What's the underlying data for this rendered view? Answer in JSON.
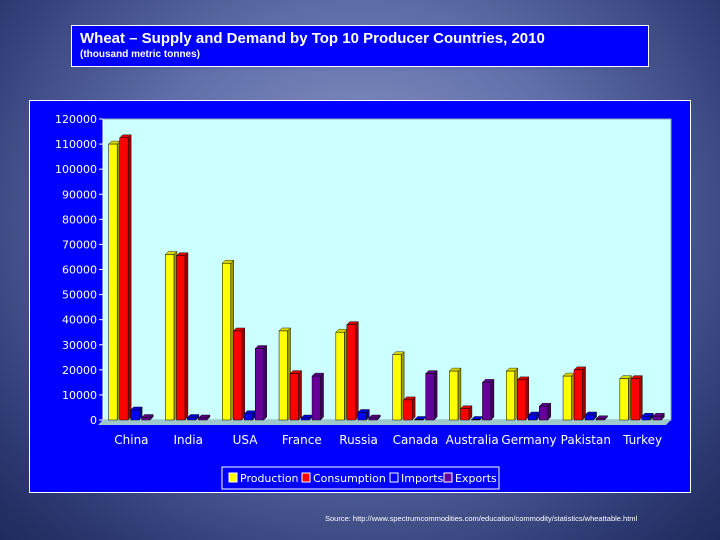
{
  "header": {
    "title": "Wheat – Supply and Demand by Top 10 Producer Countries, 2010",
    "subtitle": "(thousand metric tonnes)"
  },
  "footer": {
    "source": "Source: http://www.spectrumcommodities.com/education/commodity/statistics/wheattable.html"
  },
  "colors": {
    "background": "#5f6ea8",
    "panel": "#0000ff",
    "plot_area": "#ccffff",
    "production": "#ffff00",
    "consumption": "#ff0000",
    "imports": "#0000ff",
    "exports": "#660099"
  },
  "chart_data": {
    "type": "bar",
    "title": "Wheat – Supply and Demand by Top 10 Producer Countries, 2010",
    "subtitle": "(thousand metric tonnes)",
    "xlabel": "",
    "ylabel": "",
    "ylim": [
      0,
      120000
    ],
    "yticks": [
      0,
      10000,
      20000,
      30000,
      40000,
      50000,
      60000,
      70000,
      80000,
      90000,
      100000,
      110000,
      120000
    ],
    "grid": false,
    "legend_position": "bottom",
    "categories": [
      "China",
      "India",
      "USA",
      "France",
      "Russia",
      "Canada",
      "Australia",
      "Germany",
      "Pakistan",
      "Turkey"
    ],
    "series": [
      {
        "name": "Production",
        "color": "#ffff00",
        "values": [
          110000,
          66000,
          62500,
          35500,
          35000,
          26000,
          19500,
          19500,
          17500,
          16500
        ]
      },
      {
        "name": "Consumption",
        "color": "#ff0000",
        "values": [
          112500,
          65500,
          35500,
          18500,
          38000,
          8000,
          4500,
          16000,
          20000,
          16500
        ]
      },
      {
        "name": "Imports",
        "color": "#0000ff",
        "values": [
          4000,
          1000,
          2500,
          800,
          3000,
          200,
          200,
          2000,
          2000,
          1500
        ]
      },
      {
        "name": "Exports",
        "color": "#660099",
        "values": [
          1000,
          800,
          28500,
          17500,
          800,
          18500,
          15000,
          5500,
          500,
          1500
        ]
      }
    ]
  }
}
